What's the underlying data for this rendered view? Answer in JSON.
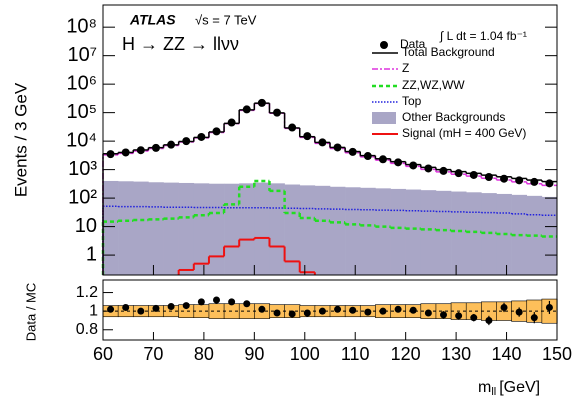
{
  "chart_data": {
    "type": "histogram",
    "experiment": "ATLAS",
    "energy": "√s = 7 TeV",
    "process": "H → ZZ → llνν",
    "luminosity": "∫ L dt = 1.04 fb⁻¹",
    "y_label": "Events / 3 GeV",
    "x_label": "m",
    "x_label_sub": "ll",
    "x_label_unit": "[GeV]",
    "bins": [
      60,
      63,
      66,
      69,
      72,
      75,
      78,
      81,
      84,
      87,
      90,
      93,
      96,
      99,
      102,
      105,
      108,
      111,
      114,
      117,
      120,
      123,
      126,
      129,
      132,
      135,
      138,
      141,
      144,
      147,
      150
    ],
    "xlim": [
      60,
      150
    ],
    "xticks": [
      60,
      70,
      80,
      90,
      100,
      110,
      120,
      130,
      140,
      150
    ],
    "ylim": [
      0.2,
      600000000
    ],
    "log_y": true,
    "yticks": [
      1,
      10,
      {
        "value": 100,
        "label": "10²"
      },
      {
        "value": 1000,
        "label": "10³"
      },
      {
        "value": 10000,
        "label": "10⁴"
      },
      {
        "value": 100000,
        "label": "10⁵"
      },
      {
        "value": 1000000,
        "label": "10⁶"
      },
      {
        "value": 10000000,
        "label": "10⁷"
      },
      {
        "value": 100000000,
        "label": "10⁸"
      }
    ],
    "series": [
      {
        "name": "Other Backgrounds",
        "color": "#a9a6c6",
        "style": "fill",
        "values": [
          400,
          390,
          380,
          360,
          350,
          340,
          330,
          320,
          320,
          330,
          350,
          330,
          300,
          280,
          270,
          250,
          240,
          230,
          220,
          210,
          200,
          190,
          180,
          170,
          160,
          150,
          140,
          130,
          120,
          110
        ]
      },
      {
        "name": "Top",
        "color": "#2222dd",
        "style": "dotted",
        "values": [
          52,
          50,
          50,
          49,
          48,
          48,
          47,
          47,
          46,
          46,
          46,
          45,
          44,
          43,
          42,
          41,
          40,
          39,
          38,
          37,
          36,
          35,
          34,
          33,
          32,
          31,
          30,
          28,
          26,
          25
        ]
      },
      {
        "name": "ZZ,WZ,WW",
        "color": "#22dd22",
        "style": "dashed",
        "values": [
          15,
          16,
          17,
          18,
          19,
          21,
          25,
          30,
          60,
          250,
          400,
          180,
          30,
          20,
          16,
          14,
          12,
          11,
          10,
          9,
          8.5,
          8,
          7.5,
          7,
          6.5,
          6,
          5.5,
          5,
          4.8,
          4.5
        ]
      },
      {
        "name": "Z",
        "color": "#dd33dd",
        "style": "dashdot",
        "values": [
          3300,
          3700,
          4500,
          5500,
          7000,
          9300,
          13000,
          20000,
          41000,
          120000,
          210000,
          95000,
          28000,
          13500,
          8300,
          5500,
          3900,
          2800,
          2150,
          1650,
          1300,
          1020,
          830,
          690,
          590,
          500,
          430,
          370,
          320,
          280
        ]
      },
      {
        "name": "Total Background",
        "color": "#000000",
        "style": "step",
        "values": [
          3600,
          4000,
          4900,
          5900,
          7400,
          9700,
          13500,
          21000,
          42000,
          125000,
          215000,
          98000,
          29000,
          14300,
          9000,
          6000,
          4300,
          3100,
          2400,
          1900,
          1500,
          1200,
          1000,
          850,
          740,
          640,
          560,
          490,
          430,
          380
        ]
      },
      {
        "name": "Signal (mH = 400 GeV)",
        "color": "#ee1111",
        "style": "signal",
        "values": [
          null,
          null,
          null,
          null,
          null,
          0.3,
          0.5,
          0.9,
          2,
          3.5,
          4,
          2,
          0.6,
          0.25,
          null,
          null,
          null,
          null,
          null,
          null,
          null,
          null,
          null,
          null,
          null,
          null,
          null,
          null,
          null,
          null
        ]
      },
      {
        "name": "Data",
        "color": "#000000",
        "style": "points",
        "values": [
          3500,
          4000,
          4800,
          5800,
          7500,
          10000,
          14000,
          22000,
          45000,
          130000,
          220000,
          100000,
          30000,
          15000,
          9000,
          6000,
          4200,
          3000,
          2300,
          1800,
          1400,
          1100,
          900,
          750,
          650,
          550,
          480,
          420,
          370,
          330
        ]
      }
    ],
    "ratio": {
      "y_label": "Data / MC",
      "ylim": [
        0.69,
        1.335
      ],
      "yticks": [
        0.8,
        1,
        1.2
      ],
      "values": [
        1.02,
        1.04,
        1.0,
        1.03,
        1.05,
        1.06,
        1.1,
        1.12,
        1.1,
        1.08,
        1.02,
        0.98,
        0.97,
        0.98,
        1.0,
        1.02,
        1.01,
        0.99,
        1.0,
        1.02,
        1.01,
        0.98,
        0.96,
        0.95,
        0.93,
        0.9,
        1.04,
        0.99,
        0.93,
        1.04
      ],
      "errors": [
        0.02,
        0.02,
        0.02,
        0.02,
        0.02,
        0.02,
        0.02,
        0.01,
        0.01,
        0.01,
        0.01,
        0.01,
        0.01,
        0.01,
        0.02,
        0.02,
        0.02,
        0.02,
        0.03,
        0.03,
        0.03,
        0.03,
        0.04,
        0.04,
        0.04,
        0.05,
        0.05,
        0.05,
        0.06,
        0.07
      ],
      "mc_uncertainty": [
        0.06,
        0.06,
        0.06,
        0.06,
        0.06,
        0.07,
        0.07,
        0.08,
        0.08,
        0.08,
        0.08,
        0.07,
        0.07,
        0.06,
        0.06,
        0.06,
        0.06,
        0.06,
        0.07,
        0.07,
        0.07,
        0.08,
        0.08,
        0.09,
        0.09,
        0.1,
        0.1,
        0.11,
        0.12,
        0.13
      ]
    }
  }
}
